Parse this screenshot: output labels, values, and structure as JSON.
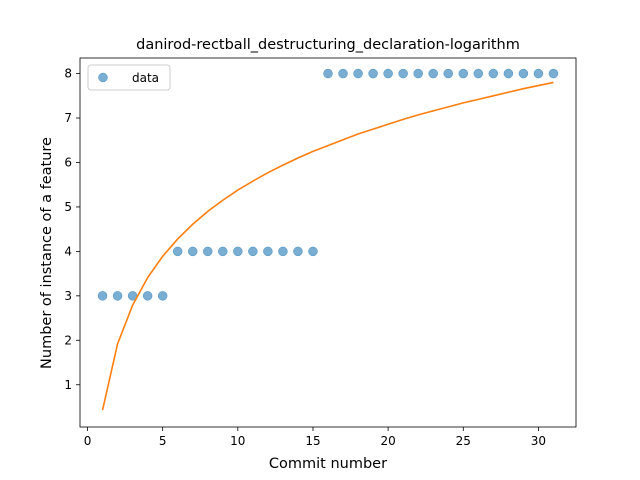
{
  "chart_data": {
    "type": "scatter",
    "title": "danirod-rectball_destructuring_declaration-logarithm",
    "xlabel": "Commit number",
    "ylabel": "Number of instance of a feature",
    "xlim": [
      -0.5,
      32.5
    ],
    "ylim": [
      0.05,
      8.35
    ],
    "xticks": [
      0,
      5,
      10,
      15,
      20,
      25,
      30
    ],
    "yticks": [
      1,
      2,
      3,
      4,
      5,
      6,
      7,
      8
    ],
    "grid": false,
    "legend": {
      "position": "top-left",
      "entries": [
        "data"
      ]
    },
    "series": [
      {
        "name": "data",
        "kind": "scatter",
        "color": "#1f77b4",
        "x": [
          1,
          2,
          3,
          4,
          5,
          6,
          7,
          8,
          9,
          10,
          11,
          12,
          13,
          14,
          15,
          16,
          17,
          18,
          19,
          20,
          21,
          22,
          23,
          24,
          25,
          26,
          27,
          28,
          29,
          30,
          31
        ],
        "y": [
          3,
          3,
          3,
          3,
          3,
          4,
          4,
          4,
          4,
          4,
          4,
          4,
          4,
          4,
          4,
          8,
          8,
          8,
          8,
          8,
          8,
          8,
          8,
          8,
          8,
          8,
          8,
          8,
          8,
          8,
          8
        ]
      },
      {
        "kind": "line",
        "color": "#ff7f0e",
        "x": [
          1,
          2,
          3,
          4,
          5,
          6,
          7,
          8,
          9,
          10,
          11,
          12,
          13,
          14,
          15,
          16,
          17,
          18,
          19,
          20,
          21,
          22,
          23,
          24,
          25,
          26,
          27,
          28,
          29,
          30,
          31
        ],
        "y": [
          0.43,
          1.92,
          2.79,
          3.41,
          3.89,
          4.28,
          4.61,
          4.9,
          5.15,
          5.38,
          5.58,
          5.77,
          5.94,
          6.1,
          6.25,
          6.38,
          6.51,
          6.64,
          6.75,
          6.86,
          6.97,
          7.07,
          7.16,
          7.25,
          7.34,
          7.42,
          7.5,
          7.58,
          7.66,
          7.73,
          7.8
        ]
      }
    ]
  }
}
